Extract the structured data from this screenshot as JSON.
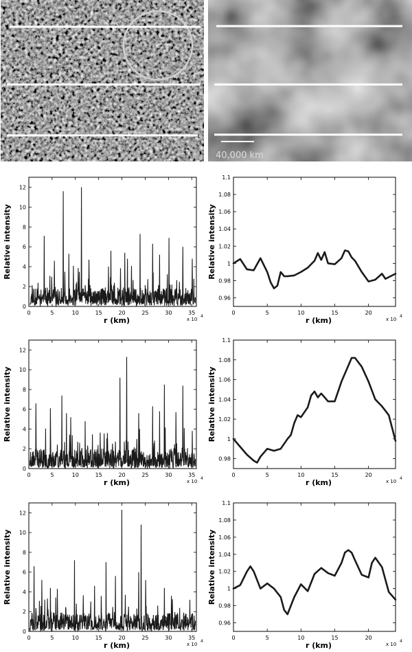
{
  "images": {
    "left": {
      "name": "high-resolution solar image"
    },
    "right": {
      "name": "smoothed solar image"
    },
    "scale_bar_label": "40,000 km"
  },
  "colors": {
    "line": "#1a1a1a",
    "cut": "#ffffff",
    "circle": "#d0d0d0"
  },
  "chart_data": [
    {
      "type": "line",
      "xlabel": "r (km)",
      "ylabel": "Relative intensity",
      "x_multiplier": "x 10",
      "x_exponent": "4",
      "xlim": [
        0,
        36
      ],
      "ylim": [
        0,
        13
      ],
      "xticks": [
        0,
        5,
        10,
        15,
        20,
        25,
        30,
        35
      ],
      "yticks": [
        0,
        2,
        4,
        6,
        8,
        10,
        12
      ],
      "ytick_labels": [
        "0",
        "2",
        "4",
        "6",
        "8",
        "10",
        "12"
      ],
      "noise": {
        "n": 620,
        "seed": 11,
        "base": 0.55
      },
      "spikes": [
        [
          3.3,
          7.1
        ],
        [
          7.4,
          11.6
        ],
        [
          11.3,
          12.0
        ],
        [
          8.6,
          5.3
        ],
        [
          12.9,
          4.7
        ],
        [
          5.5,
          4.6
        ],
        [
          17.6,
          5.6
        ],
        [
          20.6,
          5.4
        ],
        [
          23.9,
          7.3
        ],
        [
          26.6,
          6.3
        ],
        [
          30.1,
          6.9
        ],
        [
          33.1,
          6.0
        ],
        [
          35.1,
          4.8
        ],
        [
          21.2,
          4.8
        ],
        [
          28.1,
          5.2
        ]
      ]
    },
    {
      "type": "line",
      "xlabel": "r (km)",
      "ylabel": "Relative intensity",
      "x_multiplier": "x 10",
      "x_exponent": "4",
      "xlim": [
        0,
        24
      ],
      "ylim": [
        0.95,
        1.1
      ],
      "xticks": [
        0,
        5,
        10,
        15,
        20
      ],
      "yticks": [
        0.96,
        0.98,
        1,
        1.02,
        1.04,
        1.06,
        1.08,
        1.1
      ],
      "ytick_labels": [
        "0.96",
        "0.98",
        "1",
        "1.02",
        "1.04",
        "1.06",
        "1.08",
        "1.1"
      ],
      "x": [
        0,
        1,
        2,
        3,
        4,
        5,
        5.5,
        6,
        6.5,
        7,
        7.5,
        8,
        9,
        10,
        11,
        12,
        12.5,
        13,
        13.5,
        14,
        15,
        16,
        16.5,
        17,
        17.5,
        18,
        19,
        20,
        21,
        22,
        22.5,
        23,
        24
      ],
      "y": [
        1.0,
        1.005,
        0.993,
        0.992,
        1.006,
        0.99,
        0.978,
        0.971,
        0.974,
        0.99,
        0.985,
        0.985,
        0.986,
        0.99,
        0.995,
        1.003,
        1.012,
        1.004,
        1.013,
        1.0,
        0.999,
        1.006,
        1.015,
        1.014,
        1.007,
        1.003,
        0.99,
        0.979,
        0.981,
        0.988,
        0.982,
        0.984,
        0.988
      ]
    },
    {
      "type": "line",
      "xlabel": "r (km)",
      "ylabel": "Relative intensity",
      "x_multiplier": "x 10",
      "x_exponent": "4",
      "xlim": [
        0,
        36
      ],
      "ylim": [
        0,
        13
      ],
      "xticks": [
        0,
        5,
        10,
        15,
        20,
        25,
        30,
        35
      ],
      "yticks": [
        0,
        2,
        4,
        6,
        8,
        10,
        12
      ],
      "ytick_labels": [
        "0",
        "2",
        "4",
        "6",
        "8",
        "10",
        "12"
      ],
      "noise": {
        "n": 620,
        "seed": 23,
        "base": 0.6
      },
      "spikes": [
        [
          1.5,
          6.6
        ],
        [
          4.6,
          6.1
        ],
        [
          7.1,
          7.4
        ],
        [
          8.1,
          5.6
        ],
        [
          9.0,
          5.2
        ],
        [
          12.1,
          4.8
        ],
        [
          19.6,
          9.2
        ],
        [
          21.0,
          11.3
        ],
        [
          23.6,
          5.6
        ],
        [
          26.6,
          6.3
        ],
        [
          28.1,
          5.8
        ],
        [
          29.1,
          8.5
        ],
        [
          31.6,
          5.7
        ],
        [
          33.1,
          8.4
        ],
        [
          35.1,
          3.8
        ]
      ]
    },
    {
      "type": "line",
      "xlabel": "r (km)",
      "ylabel": "Relative intensity",
      "x_multiplier": "x 10",
      "x_exponent": "4",
      "xlim": [
        0,
        24
      ],
      "ylim": [
        0.97,
        1.1
      ],
      "xticks": [
        0,
        5,
        10,
        15,
        20
      ],
      "yticks": [
        0.98,
        1,
        1.02,
        1.04,
        1.06,
        1.08,
        1.1
      ],
      "ytick_labels": [
        "0.98",
        "1",
        "1.02",
        "1.04",
        "1.06",
        "1.08",
        "1.1"
      ],
      "x": [
        0,
        1,
        2,
        3,
        3.5,
        4,
        5,
        6,
        7,
        8,
        8.5,
        9,
        9.5,
        10,
        11,
        11.5,
        12,
        12.5,
        13,
        13.5,
        14,
        15,
        16,
        17,
        17.5,
        18,
        19,
        20,
        21,
        22,
        23,
        24
      ],
      "y": [
        1.0,
        0.992,
        0.984,
        0.978,
        0.976,
        0.982,
        0.99,
        0.988,
        0.99,
        1.0,
        1.004,
        1.016,
        1.024,
        1.022,
        1.032,
        1.044,
        1.048,
        1.042,
        1.046,
        1.042,
        1.038,
        1.038,
        1.058,
        1.074,
        1.082,
        1.082,
        1.073,
        1.058,
        1.04,
        1.033,
        1.024,
        0.998
      ]
    },
    {
      "type": "line",
      "xlabel": "r (km)",
      "ylabel": "Relative intensity",
      "x_multiplier": "x 10",
      "x_exponent": "4",
      "xlim": [
        0,
        36
      ],
      "ylim": [
        0,
        13
      ],
      "xticks": [
        0,
        5,
        10,
        15,
        20,
        25,
        30,
        35
      ],
      "yticks": [
        0,
        2,
        4,
        6,
        8,
        10,
        12
      ],
      "ytick_labels": [
        "0",
        "2",
        "4",
        "6",
        "8",
        "10",
        "12"
      ],
      "noise": {
        "n": 620,
        "seed": 37,
        "base": 0.55
      },
      "spikes": [
        [
          1.1,
          6.6
        ],
        [
          2.8,
          5.2
        ],
        [
          4.6,
          4.4
        ],
        [
          6.1,
          4.3
        ],
        [
          9.8,
          7.2
        ],
        [
          14.1,
          4.6
        ],
        [
          16.6,
          7.0
        ],
        [
          18.6,
          5.6
        ],
        [
          20.0,
          12.3
        ],
        [
          23.6,
          6.0
        ],
        [
          24.1,
          10.8
        ],
        [
          25.1,
          5.2
        ],
        [
          29.1,
          4.4
        ],
        [
          30.6,
          3.6
        ],
        [
          34.6,
          3.2
        ]
      ]
    },
    {
      "type": "line",
      "xlabel": "r (km)",
      "ylabel": "Relative intensity",
      "x_multiplier": "x 10",
      "x_exponent": "4",
      "xlim": [
        0,
        24
      ],
      "ylim": [
        0.95,
        1.1
      ],
      "xticks": [
        0,
        5,
        10,
        15,
        20
      ],
      "yticks": [
        0.96,
        0.98,
        1,
        1.02,
        1.04,
        1.06,
        1.08,
        1.1
      ],
      "ytick_labels": [
        "0.96",
        "0.98",
        "1",
        "1.02",
        "1.04",
        "1.06",
        "1.08",
        "1.1"
      ],
      "x": [
        0,
        1,
        2,
        2.5,
        3,
        4,
        5,
        6,
        7,
        7.5,
        8,
        9,
        10,
        11,
        12,
        13,
        14,
        15,
        16,
        16.5,
        17,
        17.5,
        18,
        19,
        20,
        20.5,
        21,
        22,
        23,
        24
      ],
      "y": [
        1.0,
        1.004,
        1.02,
        1.026,
        1.02,
        1.0,
        1.006,
        1.0,
        0.99,
        0.975,
        0.97,
        0.99,
        1.005,
        0.997,
        1.017,
        1.024,
        1.018,
        1.015,
        1.03,
        1.042,
        1.045,
        1.042,
        1.033,
        1.016,
        1.013,
        1.03,
        1.036,
        1.025,
        0.996,
        0.987
      ]
    }
  ]
}
